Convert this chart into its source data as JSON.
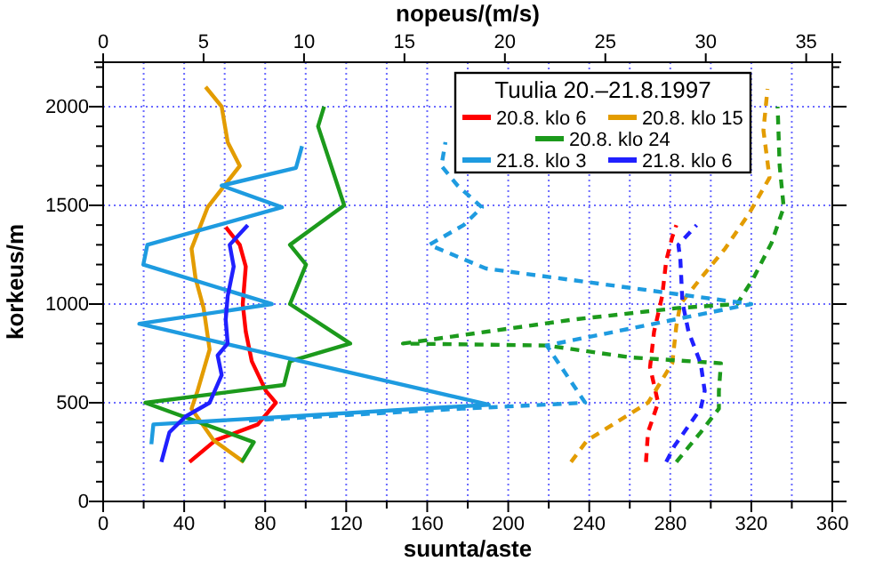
{
  "chart_data": {
    "type": "line",
    "xlabel": "suunta/aste",
    "x2label": "nopeus/(m/s)",
    "ylabel": "korkeus/m",
    "legend_title": "Tuulia 20.–21.8.1997",
    "legend": "top right",
    "grid": true,
    "xlim": [
      0,
      360
    ],
    "xticks": [
      0,
      {
        "value": 20,
        "label": null
      },
      40,
      {
        "value": 60,
        "label": null
      },
      80,
      {
        "value": 100,
        "label": null
      },
      120,
      {
        "value": 140,
        "label": null
      },
      160,
      {
        "value": 180,
        "label": null
      },
      200,
      {
        "value": 220,
        "label": null
      },
      240,
      {
        "value": 260,
        "label": null
      },
      280,
      {
        "value": 300,
        "label": null
      },
      320,
      {
        "value": 340,
        "label": null
      },
      360
    ],
    "x2lim": [
      0,
      36.3
    ],
    "x2ticks": [
      0,
      5,
      10,
      15,
      20,
      25,
      30,
      35
    ],
    "ylim": [
      0,
      2225
    ],
    "yticks": [
      0,
      {
        "value": 100,
        "label": null
      },
      {
        "value": 200,
        "label": null
      },
      {
        "value": 300,
        "label": null
      },
      {
        "value": 400,
        "label": null
      },
      500,
      {
        "value": 600,
        "label": null
      },
      {
        "value": 700,
        "label": null
      },
      {
        "value": 800,
        "label": null
      },
      {
        "value": 900,
        "label": null
      },
      1000,
      {
        "value": 1100,
        "label": null
      },
      {
        "value": 1200,
        "label": null
      },
      {
        "value": 1300,
        "label": null
      },
      {
        "value": 1400,
        "label": null
      },
      1500,
      {
        "value": 1600,
        "label": null
      },
      {
        "value": 1700,
        "label": null
      },
      {
        "value": 1800,
        "label": null
      },
      {
        "value": 1900,
        "label": null
      },
      2000,
      {
        "value": 2100,
        "label": null
      },
      {
        "value": 2200,
        "label": null
      }
    ],
    "series": [
      {
        "name": "20.8. klo 6",
        "color": "#ff0000",
        "axis": "x2",
        "line_style": "solid",
        "x": [
          4.3,
          5.6,
          7.7,
          8.6,
          8.1,
          7.4,
          7.1,
          6.95,
          7.1,
          6.8,
          6.1
        ],
        "values": [
          200,
          310,
          390,
          500,
          560,
          710,
          860,
          1000,
          1190,
          1300,
          1390
        ]
      },
      {
        "name": "20.8. klo 15",
        "color": "#e39c00",
        "axis": "x2",
        "line_style": "solid",
        "x": [
          7.0,
          5.5,
          4.4,
          4.7,
          5.3,
          5.0,
          4.6,
          4.4,
          5.2,
          6.8,
          6.2,
          5.9,
          5.1
        ],
        "values": [
          200,
          310,
          470,
          560,
          770,
          980,
          1130,
          1280,
          1490,
          1700,
          1820,
          2000,
          2100
        ]
      },
      {
        "name": "20.8. klo 24",
        "color": "#1c9a1c",
        "axis": "x2",
        "line_style": "solid",
        "x": [
          6.9,
          7.5,
          2.1,
          9.0,
          9.3,
          12.3,
          9.3,
          10.1,
          9.3,
          12.0,
          10.7,
          11.0
        ],
        "values": [
          200,
          300,
          500,
          590,
          710,
          800,
          1000,
          1200,
          1300,
          1500,
          1900,
          2000
        ]
      },
      {
        "name": "21.8. klo 3",
        "color": "#1e9be0",
        "axis": "x2",
        "line_style": "solid",
        "x": [
          2.4,
          2.5,
          19.2,
          1.8,
          8.4,
          2.0,
          2.2,
          8.9,
          5.9,
          9.6,
          9.9
        ],
        "values": [
          290,
          390,
          490,
          900,
          1000,
          1200,
          1300,
          1490,
          1600,
          1690,
          1800
        ]
      },
      {
        "name": "21.8. klo 6",
        "color": "#2020ff",
        "axis": "x2",
        "line_style": "solid",
        "x": [
          2.9,
          3.3,
          4.1,
          5.3,
          5.9,
          5.7,
          6.2,
          6.1,
          6.2,
          6.5,
          6.3,
          7.2
        ],
        "values": [
          200,
          350,
          430,
          500,
          640,
          740,
          800,
          920,
          1040,
          1190,
          1300,
          1400
        ]
      },
      {
        "color": "#ff0000",
        "line_style": "dashed",
        "x": [
          268,
          269,
          274,
          270,
          272,
          276,
          278,
          281,
          283
        ],
        "values": [
          200,
          350,
          500,
          680,
          860,
          1040,
          1220,
          1340,
          1400
        ]
      },
      {
        "color": "#e39c00",
        "line_style": "dashed",
        "x": [
          231,
          239,
          269,
          281,
          283,
          285,
          295,
          307,
          319,
          329,
          326,
          328
        ],
        "values": [
          200,
          310,
          500,
          700,
          890,
          1000,
          1130,
          1280,
          1460,
          1640,
          1880,
          2090
        ]
      },
      {
        "color": "#1c9a1c",
        "line_style": "dashed",
        "x": [
          283,
          295,
          304,
          304,
          305,
          260,
          219,
          148,
          231,
          284,
          313,
          321,
          330,
          336,
          334,
          333
        ],
        "values": [
          200,
          350,
          470,
          560,
          700,
          730,
          790,
          800,
          920,
          980,
          1000,
          1130,
          1310,
          1490,
          1700,
          2000
        ]
      },
      {
        "color": "#1e9be0",
        "line_style": "dashed",
        "x": [
          72,
          177,
          238,
          219,
          320,
          189,
          161,
          178,
          187,
          175,
          167,
          169
        ],
        "values": [
          410,
          470,
          500,
          790,
          1000,
          1180,
          1300,
          1400,
          1490,
          1600,
          1700,
          1820
        ]
      },
      {
        "color": "#2020ff",
        "line_style": "dashed",
        "x": [
          278,
          282,
          295,
          297,
          295,
          289,
          286,
          285,
          284,
          293
        ],
        "values": [
          200,
          280,
          470,
          560,
          700,
          860,
          1010,
          1220,
          1300,
          1400
        ]
      }
    ]
  }
}
